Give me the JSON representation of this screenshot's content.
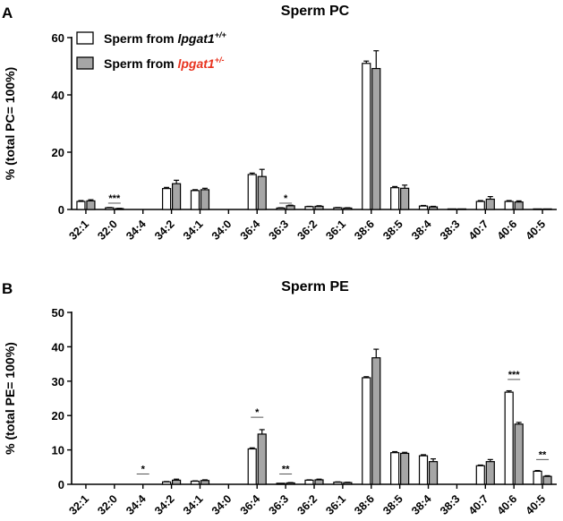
{
  "legend": {
    "entries": [
      {
        "text": "Sperm from ",
        "gene": "lpgat1",
        "sup": "+/+",
        "fill": "#ffffff",
        "gene_color": "#000000"
      },
      {
        "text": "Sperm from ",
        "gene": "lpgat1",
        "sup": "+/-",
        "fill": "#a6a6a6",
        "gene_color": "#e8321e"
      }
    ]
  },
  "chart_data": [
    {
      "type": "bar",
      "panel_label": "A",
      "title": "Sperm PC",
      "ylabel": "% (total PC= 100%)",
      "ylim": [
        0,
        60
      ],
      "yticks": [
        0,
        20,
        40,
        60
      ],
      "categories": [
        "32:1",
        "32:0",
        "34:4",
        "34:2",
        "34:1",
        "34:0",
        "36:4",
        "36:3",
        "36:2",
        "36:1",
        "38:6",
        "38:5",
        "38:4",
        "38:3",
        "40:7",
        "40:6",
        "40:5"
      ],
      "series": [
        {
          "name": "Sperm from lpgat1+/+",
          "fill": "#ffffff",
          "values": [
            2.8,
            0.6,
            0,
            7.3,
            6.6,
            0,
            12.2,
            0.5,
            1.0,
            0.6,
            51.0,
            7.6,
            1.2,
            0.2,
            2.8,
            2.8,
            0.2
          ],
          "errors": [
            0.3,
            0.1,
            0,
            0.4,
            0.3,
            0,
            0.5,
            0.1,
            0.1,
            0.1,
            0.8,
            0.4,
            0.2,
            0.05,
            0.3,
            0.3,
            0.05
          ]
        },
        {
          "name": "Sperm from lpgat1+/-",
          "fill": "#a6a6a6",
          "values": [
            3.0,
            0.3,
            0,
            9.0,
            6.9,
            0,
            11.5,
            1.3,
            1.1,
            0.5,
            49.2,
            7.4,
            0.9,
            0.2,
            3.6,
            2.6,
            0.2
          ],
          "errors": [
            0.4,
            0.1,
            0,
            1.2,
            0.5,
            0,
            2.5,
            0.2,
            0.2,
            0.1,
            6.2,
            1.1,
            0.2,
            0.05,
            0.9,
            0.4,
            0.05
          ]
        }
      ],
      "significance": [
        {
          "category": "32:0",
          "label": "***",
          "y": 2.2
        },
        {
          "category": "36:3",
          "label": "*",
          "y": 2.2
        }
      ]
    },
    {
      "type": "bar",
      "panel_label": "B",
      "title": "Sperm PE",
      "ylabel": "% (total PE= 100%)",
      "ylim": [
        0,
        50
      ],
      "yticks": [
        0,
        10,
        20,
        30,
        40,
        50
      ],
      "categories": [
        "32:1",
        "32:0",
        "34:4",
        "34:2",
        "34:1",
        "34:0",
        "36:4",
        "36:3",
        "36:2",
        "36:1",
        "38:6",
        "38:5",
        "38:4",
        "38:3",
        "40:7",
        "40:6",
        "40:5"
      ],
      "series": [
        {
          "name": "Sperm from lpgat1+/+",
          "fill": "#ffffff",
          "values": [
            0,
            0,
            0,
            0.7,
            0.9,
            0,
            10.3,
            0.3,
            1.2,
            0.6,
            31.0,
            9.2,
            8.3,
            0,
            5.4,
            26.8,
            3.8
          ],
          "errors": [
            0,
            0,
            0,
            0.1,
            0.1,
            0,
            0.3,
            0.05,
            0.1,
            0.1,
            0.3,
            0.3,
            0.3,
            0,
            0.2,
            0.4,
            0.2
          ]
        },
        {
          "name": "Sperm from lpgat1+/-",
          "fill": "#a6a6a6",
          "values": [
            0,
            0,
            0,
            1.2,
            1.1,
            0,
            14.6,
            0.4,
            1.3,
            0.5,
            36.8,
            9.0,
            6.6,
            0,
            6.6,
            17.5,
            2.3
          ],
          "errors": [
            0,
            0,
            0,
            0.3,
            0.2,
            0,
            1.3,
            0.1,
            0.2,
            0.1,
            2.5,
            0.3,
            0.8,
            0,
            0.6,
            0.5,
            0.2
          ]
        }
      ],
      "significance": [
        {
          "category": "34:4",
          "label": "*",
          "y": 3.0
        },
        {
          "category": "36:4",
          "label": "*",
          "y": 19.5
        },
        {
          "category": "36:3",
          "label": "**",
          "y": 3.0
        },
        {
          "category": "40:6",
          "label": "***",
          "y": 30.5
        },
        {
          "category": "40:5",
          "label": "**",
          "y": 7.2
        }
      ]
    }
  ]
}
